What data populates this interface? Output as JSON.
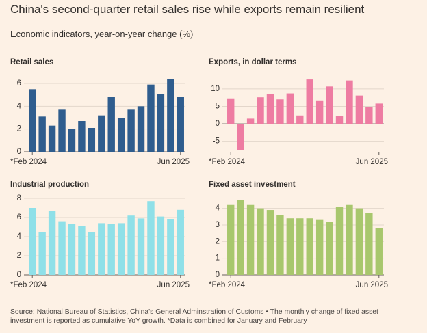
{
  "title": "China's second-quarter retail sales rise while exports remain resilient",
  "subtitle": "Economic indicators, year-on-year change (%)",
  "source": "Source: National Bureau of Statistics, China's General Adminstration of Customs • The monthly change of fixed asset investment is reported as cumulative YoY growth. *Data is combined for January and February",
  "chart_data": [
    {
      "type": "bar",
      "title": "Retail sales",
      "color": "#2f5d8e",
      "grid": true,
      "categories": [
        "*Feb 2024",
        null,
        null,
        null,
        null,
        null,
        null,
        null,
        null,
        null,
        null,
        null,
        null,
        null,
        null,
        "Jun 2025"
      ],
      "values": [
        5.5,
        3.1,
        2.3,
        3.7,
        2.0,
        2.7,
        2.1,
        3.2,
        4.8,
        3.0,
        3.7,
        4.0,
        5.9,
        5.1,
        6.4,
        4.8
      ],
      "ylim": [
        0,
        6.6
      ],
      "yticks": [
        0,
        2,
        4,
        6
      ]
    },
    {
      "type": "bar",
      "title": "Exports, in dollar terms",
      "color": "#ee7ca2",
      "grid": true,
      "categories": [
        "*Feb 2024",
        null,
        null,
        null,
        null,
        null,
        null,
        null,
        null,
        null,
        null,
        null,
        null,
        null,
        null,
        "Jun 2025"
      ],
      "values": [
        7.1,
        -7.5,
        1.5,
        7.6,
        8.6,
        7.0,
        8.7,
        2.4,
        12.7,
        6.7,
        10.7,
        2.3,
        12.4,
        8.1,
        4.8,
        5.8
      ],
      "ylim": [
        -8,
        13.5
      ],
      "yticks": [
        -5,
        0,
        5,
        10
      ]
    },
    {
      "type": "bar",
      "title": "Industrial production",
      "color": "#8fe0e8",
      "grid": true,
      "categories": [
        "*Feb 2024",
        null,
        null,
        null,
        null,
        null,
        null,
        null,
        null,
        null,
        null,
        null,
        null,
        null,
        null,
        "Jun 2025"
      ],
      "values": [
        7.0,
        4.5,
        6.7,
        5.6,
        5.3,
        5.1,
        4.5,
        5.4,
        5.3,
        5.4,
        6.2,
        5.9,
        7.7,
        6.1,
        5.8,
        6.8
      ],
      "ylim": [
        0,
        8
      ],
      "yticks": [
        0,
        2,
        4,
        6,
        8
      ]
    },
    {
      "type": "bar",
      "title": "Fixed asset investment",
      "color": "#a8c76d",
      "grid": true,
      "categories": [
        "*Feb 2024",
        null,
        null,
        null,
        null,
        null,
        null,
        null,
        null,
        null,
        null,
        null,
        null,
        null,
        null,
        "Jun 2025"
      ],
      "values": [
        4.2,
        4.5,
        4.2,
        4.0,
        3.9,
        3.6,
        3.4,
        3.4,
        3.4,
        3.3,
        3.2,
        4.1,
        4.2,
        4.0,
        3.7,
        2.8
      ],
      "ylim": [
        0,
        4.6
      ],
      "yticks": [
        0,
        1,
        2,
        3,
        4
      ]
    }
  ]
}
